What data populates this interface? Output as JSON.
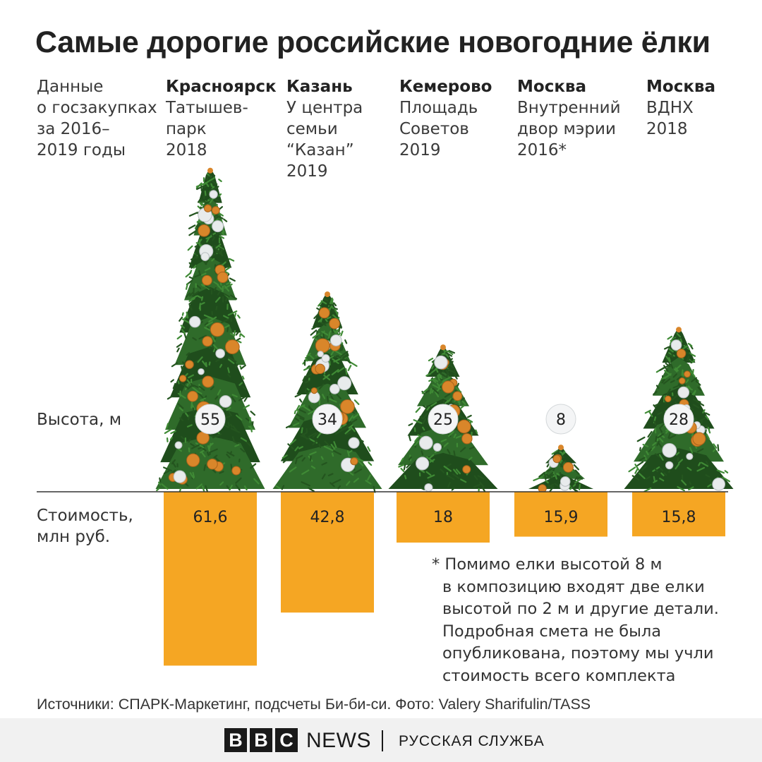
{
  "title": "Самые дорогие российские новогодние ёлки",
  "intro_lines": [
    "Данные",
    "о госзакупках",
    "за 2016–",
    "2019 годы"
  ],
  "height_label": "Высота, м",
  "cost_label_lines": [
    "Стоимость,",
    "млн руб."
  ],
  "columns": [
    {
      "city": "Красноярск",
      "lines": [
        "Татышев-",
        "парк",
        "2018"
      ]
    },
    {
      "city": "Казань",
      "lines": [
        "У центра",
        "семьи",
        "“Казан”",
        "2019"
      ]
    },
    {
      "city": "Кемерово",
      "lines": [
        "Площадь",
        "Советов",
        "2019"
      ]
    },
    {
      "city": "Москва",
      "lines": [
        "Внутренний",
        "двор мэрии",
        "2016*"
      ]
    },
    {
      "city": "Москва",
      "lines": [
        "ВДНХ",
        "2018"
      ]
    }
  ],
  "chart_data": {
    "type": "bar",
    "categories": [
      "Красноярск, Татышев-парк 2018",
      "Казань, У центра семьи “Казан” 2019",
      "Кемерово, Площадь Советов 2019",
      "Москва, Внутренний двор мэрии 2016*",
      "Москва, ВДНХ 2018"
    ],
    "series": [
      {
        "name": "Высота, м",
        "values": [
          55,
          34,
          25,
          8,
          28
        ],
        "labels": [
          "55",
          "34",
          "25",
          "8",
          "28"
        ]
      },
      {
        "name": "Стоимость, млн руб.",
        "values": [
          61.6,
          42.8,
          18,
          15.9,
          15.8
        ],
        "labels": [
          "61,6",
          "42,8",
          "18",
          "15,9",
          "15,8"
        ]
      }
    ]
  },
  "note_lines": [
    "* Помимо елки высотой 8 м",
    "в композицию входят две елки",
    "высотой по 2 м и другие детали.",
    "Подробная смета не была",
    "опубликована, поэтому мы учли",
    "стоимость всего комплекта"
  ],
  "source": "Источники: СПАРК-Маркетинг, подсчеты Би-би-си. Фото: Valery Sharifulin/TASS",
  "footer": {
    "logo_letters": [
      "B",
      "B",
      "C"
    ],
    "news": "NEWS",
    "service": "РУССКАЯ СЛУЖБА"
  },
  "colors": {
    "bar": "#f5a623",
    "tree": "#2f6b2a",
    "tree_dark": "#1f4d1c",
    "ornament_gold": "#d9862a",
    "ornament_silver": "#e8ebec",
    "line": "#333333"
  }
}
